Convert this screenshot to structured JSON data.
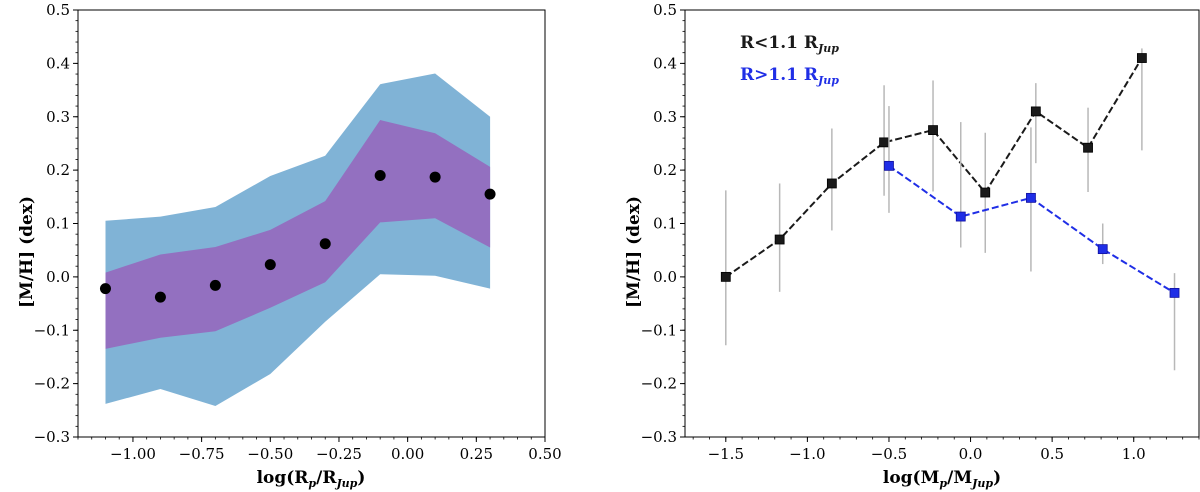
{
  "figure": {
    "panels": 2
  },
  "chart_data": [
    {
      "type": "area",
      "name": "left-panel",
      "title": "",
      "xlabel_main": "log(R",
      "xlabel_sub": "p",
      "xlabel_mid": "/R",
      "xlabel_sub2": "Jup",
      "xlabel_end": ")",
      "ylabel": "[M/H] (dex)",
      "xlim": [
        -1.2,
        0.5
      ],
      "ylim": [
        -0.3,
        0.5
      ],
      "xticks": [
        -1.0,
        -0.75,
        -0.5,
        -0.25,
        0.0,
        0.25,
        0.5
      ],
      "xtick_labels": [
        "−1.00",
        "−0.75",
        "−0.50",
        "−0.25",
        "0.00",
        "0.25",
        "0.50"
      ],
      "yticks": [
        -0.3,
        -0.2,
        -0.1,
        0.0,
        0.1,
        0.2,
        0.3,
        0.4,
        0.5
      ],
      "ytick_labels": [
        "−0.3",
        "−0.2",
        "−0.1",
        "0.0",
        "0.1",
        "0.2",
        "0.3",
        "0.4",
        "0.5"
      ],
      "x": [
        -1.1,
        -0.9,
        -0.7,
        -0.5,
        -0.3,
        -0.1,
        0.1,
        0.3
      ],
      "outer_band": {
        "color": "#80b3d6",
        "upper": [
          0.105,
          0.113,
          0.131,
          0.189,
          0.227,
          0.361,
          0.381,
          0.3
        ],
        "lower": [
          -0.238,
          -0.21,
          -0.242,
          -0.182,
          -0.084,
          0.005,
          0.002,
          -0.022
        ]
      },
      "inner_band": {
        "color": "#9370c0",
        "upper": [
          0.008,
          0.042,
          0.056,
          0.088,
          0.142,
          0.294,
          0.269,
          0.206
        ],
        "lower": [
          -0.135,
          -0.114,
          -0.102,
          -0.058,
          -0.01,
          0.102,
          0.11,
          0.055
        ]
      },
      "points": {
        "color": "#000000",
        "values": [
          -0.022,
          -0.038,
          -0.016,
          0.023,
          0.062,
          0.19,
          0.187,
          0.155
        ]
      }
    },
    {
      "type": "line",
      "name": "right-panel",
      "title": "",
      "xlabel_main": "log(M",
      "xlabel_sub": "p",
      "xlabel_mid": "/M",
      "xlabel_sub2": "Jup",
      "xlabel_end": ")",
      "ylabel": "[M/H] (dex)",
      "xlim": [
        -1.75,
        1.4
      ],
      "ylim": [
        -0.3,
        0.5
      ],
      "xticks": [
        -1.5,
        -1.0,
        -0.5,
        0.0,
        0.5,
        1.0
      ],
      "xtick_labels": [
        "−1.5",
        "−1.0",
        "−0.5",
        "0.0",
        "0.5",
        "1.0"
      ],
      "yticks": [
        -0.3,
        -0.2,
        -0.1,
        0.0,
        0.1,
        0.2,
        0.3,
        0.4,
        0.5
      ],
      "ytick_labels": [
        "−0.3",
        "−0.2",
        "−0.1",
        "0.0",
        "0.1",
        "0.2",
        "0.3",
        "0.4",
        "0.5"
      ],
      "legend_position": "top-left",
      "series": [
        {
          "name": "R<1.1 R",
          "name_sub": "Jup",
          "color": "#1a1a1a",
          "x": [
            -1.5,
            -1.17,
            -0.85,
            -0.53,
            -0.23,
            0.09,
            0.4,
            0.72,
            1.05
          ],
          "y": [
            0.0,
            0.07,
            0.175,
            0.252,
            0.275,
            0.158,
            0.31,
            0.242,
            0.41
          ],
          "yerr_low": [
            0.128,
            0.098,
            0.088,
            0.1,
            0.115,
            0.113,
            0.097,
            0.083,
            0.173
          ],
          "yerr_high": [
            0.162,
            0.105,
            0.103,
            0.107,
            0.093,
            0.112,
            0.053,
            0.075,
            0.018
          ]
        },
        {
          "name": "R>1.1 R",
          "name_sub": "Jup",
          "color": "#1f2ee6",
          "x": [
            -0.5,
            -0.06,
            0.37,
            0.81,
            1.25
          ],
          "y": [
            0.208,
            0.113,
            0.148,
            0.052,
            -0.03
          ],
          "yerr_low": [
            0.088,
            0.058,
            0.138,
            0.028,
            0.145
          ],
          "yerr_high": [
            0.112,
            0.177,
            0.132,
            0.048,
            0.037
          ]
        }
      ]
    }
  ]
}
